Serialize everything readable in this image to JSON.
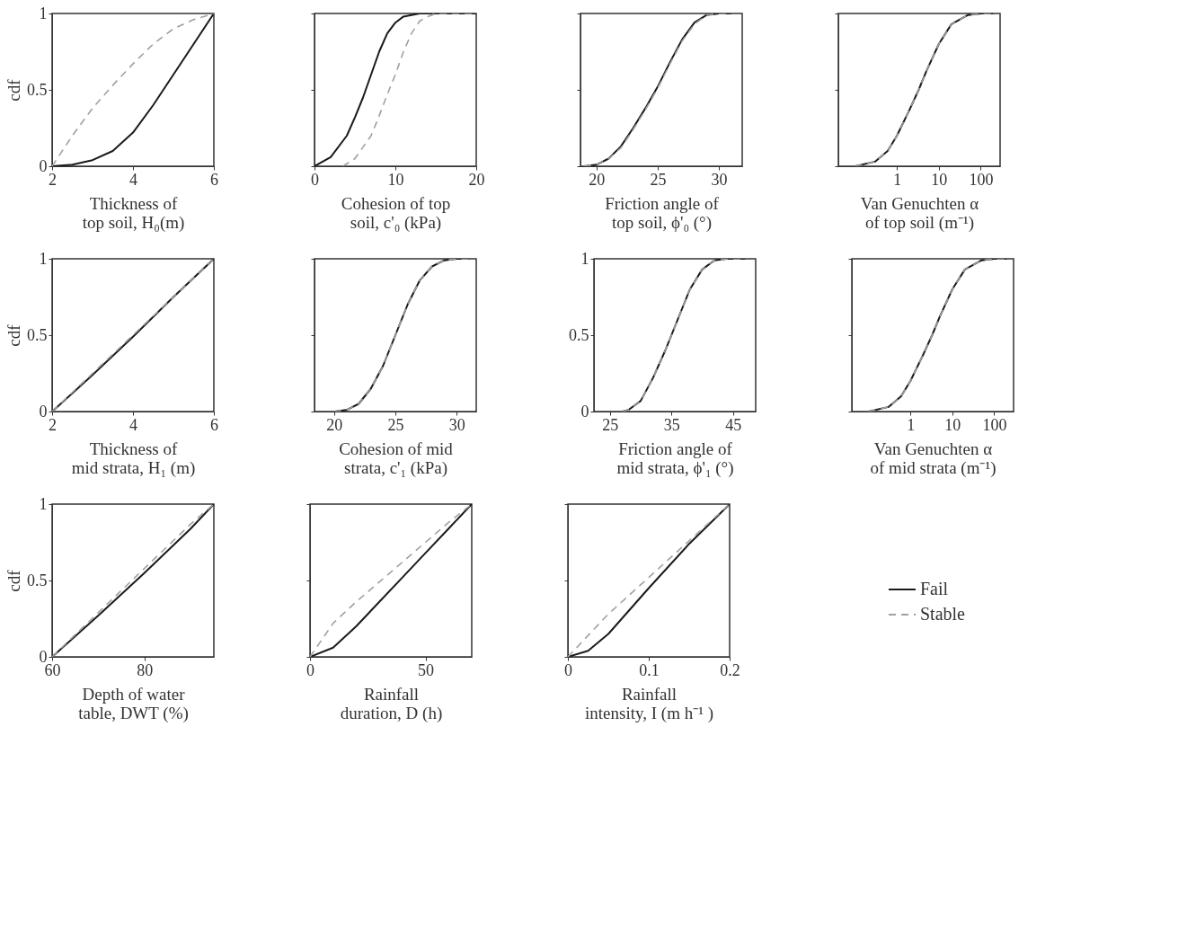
{
  "chart_data": [
    {
      "type": "line",
      "xlabel": "Thickness of\ntop soil, H₀(m)",
      "ylabel": "cdf",
      "xlim": [
        2,
        6
      ],
      "xticks": [
        2,
        4,
        6
      ],
      "ylim": [
        0,
        1
      ],
      "yticks": [
        0,
        0.5,
        1
      ],
      "grid": false,
      "series": [
        {
          "color": "#1a1a1a",
          "line_style": "solid",
          "x": [
            2,
            2.5,
            3,
            3.5,
            4,
            4.5,
            5,
            5.5,
            6
          ],
          "values": [
            0,
            0.01,
            0.04,
            0.1,
            0.22,
            0.4,
            0.6,
            0.8,
            1
          ]
        },
        {
          "color": "#a0a0a0",
          "line_style": "dashed",
          "x": [
            2,
            2.5,
            3,
            3.5,
            4,
            4.5,
            5,
            5.5,
            6
          ],
          "values": [
            0,
            0.2,
            0.38,
            0.53,
            0.67,
            0.8,
            0.9,
            0.96,
            1
          ]
        }
      ]
    },
    {
      "type": "line",
      "xlabel": "Cohesion of top\nsoil, c'₀ (kPa)",
      "xlim": [
        0,
        20
      ],
      "xticks": [
        0,
        10,
        20
      ],
      "ylim": [
        0,
        1
      ],
      "yticks": [
        0,
        0.5,
        1
      ],
      "grid": false,
      "tick_labels": "x",
      "series": [
        {
          "color": "#1a1a1a",
          "line_style": "solid",
          "x": [
            0,
            2,
            4,
            5,
            6,
            7,
            8,
            9,
            10,
            11,
            13,
            20
          ],
          "values": [
            0,
            0.06,
            0.2,
            0.32,
            0.45,
            0.6,
            0.75,
            0.87,
            0.94,
            0.98,
            1,
            1
          ]
        },
        {
          "color": "#a0a0a0",
          "line_style": "dashed",
          "x": [
            3.5,
            5,
            7,
            8,
            9,
            10,
            11,
            12,
            13,
            14,
            15,
            20
          ],
          "values": [
            0,
            0.05,
            0.2,
            0.33,
            0.47,
            0.6,
            0.75,
            0.87,
            0.95,
            0.98,
            1,
            1
          ]
        }
      ]
    },
    {
      "type": "line",
      "xlabel": "Friction angle of\ntop soil, ϕ'₀ (°)",
      "xlim": [
        18.7,
        31.9
      ],
      "xticks": [
        20,
        25,
        30
      ],
      "ylim": [
        0,
        1
      ],
      "yticks": [
        0,
        0.5,
        1
      ],
      "grid": false,
      "tick_labels": "x",
      "series": [
        {
          "color": "#1a1a1a",
          "line_style": "solid",
          "x": [
            19,
            20,
            21,
            22,
            23,
            24,
            25,
            26,
            27,
            28,
            29,
            30,
            31
          ],
          "values": [
            0,
            0.01,
            0.05,
            0.13,
            0.25,
            0.38,
            0.52,
            0.68,
            0.83,
            0.94,
            0.99,
            1,
            1
          ]
        },
        {
          "color": "#a0a0a0",
          "line_style": "dashed",
          "x": [
            19,
            20,
            21,
            22,
            23,
            24,
            25,
            26,
            27,
            28,
            29,
            30,
            31
          ],
          "values": [
            0,
            0.01,
            0.05,
            0.12,
            0.24,
            0.37,
            0.51,
            0.67,
            0.82,
            0.93,
            0.99,
            1,
            1
          ]
        }
      ]
    },
    {
      "type": "line",
      "xlabel": "Van Genuchten α\nof top soil (m⁻¹)",
      "xlim": [
        0.04,
        290
      ],
      "xticks": [
        1,
        10,
        100
      ],
      "ylim": [
        0,
        1
      ],
      "yticks": [
        0,
        0.5,
        1
      ],
      "grid": false,
      "tick_labels": "x",
      "log": "x",
      "series": [
        {
          "color": "#1a1a1a",
          "line_style": "solid",
          "x": [
            0.1,
            0.3,
            0.6,
            1,
            2,
            3.3,
            5,
            10,
            20,
            50,
            100,
            200
          ],
          "values": [
            0,
            0.03,
            0.1,
            0.2,
            0.37,
            0.5,
            0.62,
            0.8,
            0.93,
            0.99,
            1,
            1
          ]
        },
        {
          "color": "#a0a0a0",
          "line_style": "dashed",
          "x": [
            0.1,
            0.3,
            0.6,
            1,
            2,
            3.3,
            5,
            10,
            20,
            50,
            100,
            200
          ],
          "values": [
            0,
            0.03,
            0.1,
            0.2,
            0.37,
            0.5,
            0.62,
            0.8,
            0.93,
            0.99,
            1,
            1
          ]
        }
      ]
    },
    {
      "type": "line",
      "xlabel": "Thickness of\nmid strata, H₁ (m)",
      "ylabel": "cdf",
      "xlim": [
        2,
        6
      ],
      "xticks": [
        2,
        4,
        6
      ],
      "ylim": [
        0,
        1
      ],
      "yticks": [
        0,
        0.5,
        1
      ],
      "grid": false,
      "series": [
        {
          "color": "#1a1a1a",
          "line_style": "solid",
          "x": [
            2,
            3,
            4,
            5,
            6
          ],
          "values": [
            0,
            0.24,
            0.49,
            0.75,
            1
          ]
        },
        {
          "color": "#a0a0a0",
          "line_style": "dashed",
          "x": [
            2,
            3,
            4,
            5,
            6
          ],
          "values": [
            0,
            0.25,
            0.5,
            0.75,
            1
          ]
        }
      ]
    },
    {
      "type": "line",
      "xlabel": "Cohesion of mid\nstrata, c'₁ (kPa)",
      "xlim": [
        18.4,
        31.6
      ],
      "xticks": [
        20,
        25,
        30
      ],
      "ylim": [
        0,
        1
      ],
      "yticks": [
        0,
        0.5,
        1
      ],
      "grid": false,
      "tick_labels": "x",
      "series": [
        {
          "color": "#1a1a1a",
          "line_style": "solid",
          "x": [
            20,
            21,
            22,
            23,
            24,
            25,
            26,
            27,
            28,
            29,
            30,
            31
          ],
          "values": [
            0,
            0.01,
            0.05,
            0.15,
            0.3,
            0.5,
            0.7,
            0.86,
            0.95,
            0.99,
            1,
            1
          ]
        },
        {
          "color": "#a0a0a0",
          "line_style": "dashed",
          "x": [
            20,
            21,
            22,
            23,
            24,
            25,
            26,
            27,
            28,
            29,
            30,
            31
          ],
          "values": [
            0,
            0.01,
            0.05,
            0.15,
            0.3,
            0.5,
            0.7,
            0.86,
            0.95,
            0.99,
            1,
            1
          ]
        }
      ]
    },
    {
      "type": "line",
      "xlabel": "Friction angle of\nmid strata, ϕ'₁ (°)",
      "xlim": [
        22.4,
        48.7
      ],
      "xticks": [
        25,
        35,
        45
      ],
      "ylim": [
        0,
        1
      ],
      "yticks": [
        0,
        0.5,
        1
      ],
      "grid": false,
      "series": [
        {
          "color": "#1a1a1a",
          "line_style": "solid",
          "x": [
            27,
            28,
            30,
            32,
            34,
            35,
            36,
            38,
            40,
            42,
            44,
            47
          ],
          "values": [
            0,
            0.01,
            0.07,
            0.22,
            0.4,
            0.5,
            0.6,
            0.8,
            0.93,
            0.99,
            1,
            1
          ]
        },
        {
          "color": "#a0a0a0",
          "line_style": "dashed",
          "x": [
            27,
            28,
            30,
            32,
            34,
            35,
            36,
            38,
            40,
            42,
            44,
            47
          ],
          "values": [
            0,
            0.01,
            0.07,
            0.22,
            0.4,
            0.5,
            0.6,
            0.8,
            0.93,
            0.99,
            1,
            1
          ]
        }
      ]
    },
    {
      "type": "line",
      "xlabel": "Van Genuchten α\nof mid strata (m⁻¹)",
      "xlim": [
        0.04,
        290
      ],
      "xticks": [
        1,
        10,
        100
      ],
      "ylim": [
        0,
        1
      ],
      "yticks": [
        0,
        0.5,
        1
      ],
      "grid": false,
      "tick_labels": "x",
      "log": "x",
      "series": [
        {
          "color": "#1a1a1a",
          "line_style": "solid",
          "x": [
            0.1,
            0.3,
            0.6,
            1,
            2,
            3.3,
            5,
            10,
            20,
            50,
            100,
            200
          ],
          "values": [
            0,
            0.03,
            0.1,
            0.2,
            0.37,
            0.5,
            0.62,
            0.8,
            0.93,
            0.99,
            1,
            1
          ]
        },
        {
          "color": "#a0a0a0",
          "line_style": "dashed",
          "x": [
            0.1,
            0.3,
            0.6,
            1,
            2,
            3.3,
            5,
            10,
            20,
            50,
            100,
            200
          ],
          "values": [
            0,
            0.03,
            0.1,
            0.2,
            0.37,
            0.5,
            0.62,
            0.8,
            0.93,
            0.99,
            1,
            1
          ]
        }
      ]
    },
    {
      "type": "line",
      "xlabel": "Depth of water\ntable, DWT (%)",
      "ylabel": "cdf",
      "xlim": [
        60,
        95
      ],
      "xticks": [
        60,
        80
      ],
      "ylim": [
        0,
        1
      ],
      "yticks": [
        0,
        0.5,
        1
      ],
      "grid": false,
      "series": [
        {
          "color": "#1a1a1a",
          "line_style": "solid",
          "x": [
            60,
            70,
            80,
            90,
            95
          ],
          "values": [
            0,
            0.27,
            0.55,
            0.84,
            1
          ]
        },
        {
          "color": "#a0a0a0",
          "line_style": "dashed",
          "x": [
            60,
            70,
            80,
            90,
            95
          ],
          "values": [
            0,
            0.29,
            0.58,
            0.87,
            1
          ]
        }
      ]
    },
    {
      "type": "line",
      "xlabel": "Rainfall\nduration, D (h)",
      "xlim": [
        0,
        70
      ],
      "xticks": [
        0,
        50
      ],
      "ylim": [
        0,
        1
      ],
      "yticks": [
        0,
        0.5,
        1
      ],
      "grid": false,
      "tick_labels": "x",
      "series": [
        {
          "color": "#1a1a1a",
          "line_style": "solid",
          "x": [
            0,
            10,
            20,
            30,
            40,
            50,
            60,
            70
          ],
          "values": [
            0,
            0.06,
            0.2,
            0.36,
            0.52,
            0.68,
            0.84,
            1
          ]
        },
        {
          "color": "#a0a0a0",
          "line_style": "dashed",
          "x": [
            0,
            10,
            20,
            30,
            40,
            50,
            60,
            70
          ],
          "values": [
            0,
            0.22,
            0.36,
            0.49,
            0.62,
            0.75,
            0.88,
            1
          ]
        }
      ]
    },
    {
      "type": "line",
      "xlabel": "Rainfall\nintensity, I (m h⁻¹ )",
      "xlim": [
        0,
        0.2
      ],
      "xticks": [
        0,
        0.1,
        0.2
      ],
      "ylim": [
        0,
        1
      ],
      "yticks": [
        0,
        0.5,
        1
      ],
      "grid": false,
      "tick_labels": "x",
      "legend": "right",
      "series": [
        {
          "name": "Fail",
          "color": "#1a1a1a",
          "line_style": "solid",
          "x": [
            0,
            0.025,
            0.05,
            0.1,
            0.15,
            0.2
          ],
          "values": [
            0,
            0.04,
            0.15,
            0.45,
            0.74,
            1
          ]
        },
        {
          "name": "Stable",
          "color": "#a0a0a0",
          "line_style": "dashed",
          "x": [
            0,
            0.05,
            0.1,
            0.15,
            0.2
          ],
          "values": [
            0,
            0.28,
            0.52,
            0.76,
            1
          ]
        }
      ]
    }
  ]
}
